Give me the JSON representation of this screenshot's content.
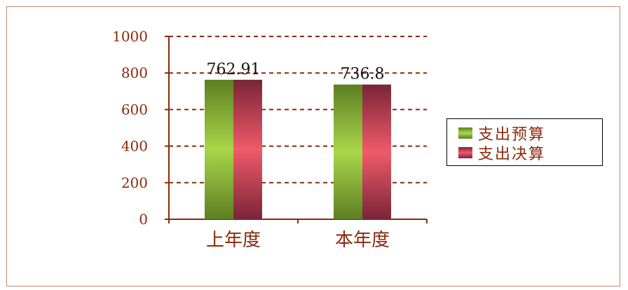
{
  "chart_data": {
    "type": "bar",
    "categories": [
      "上年度",
      "本年度"
    ],
    "series": [
      {
        "name": "支出预算",
        "values": [
          762.91,
          736.8
        ],
        "color": "#7aa13a"
      },
      {
        "name": "支出决算",
        "values": [
          762.91,
          736.8
        ],
        "color": "#c8455a"
      }
    ],
    "data_labels": [
      "762.91",
      "736.8"
    ],
    "ylim": [
      0,
      1000
    ],
    "yticks": [
      0,
      200,
      400,
      600,
      800,
      1000
    ],
    "grid": true,
    "legend_position": "right"
  },
  "colors": {
    "axis": "#8b2a0a",
    "grid": "#8b2a0a",
    "frame": "#b98a74"
  }
}
